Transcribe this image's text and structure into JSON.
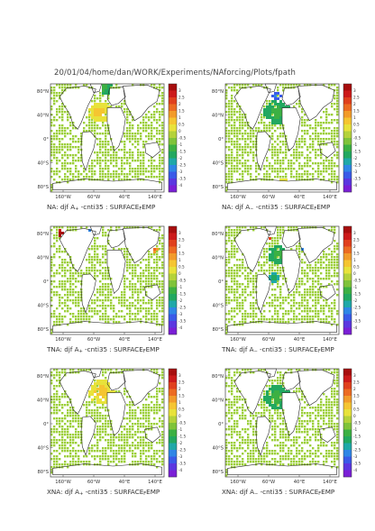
{
  "header": {
    "path": "20/01/04/home/dan/WORK/Experiments/NAforcing/Plots/fpath"
  },
  "colors": {
    "land_outline": "#2b2b2b",
    "ocean_green": "#9ccf3a",
    "colorbar": [
      "#7a1fd6",
      "#5b37e0",
      "#3a5ae8",
      "#2f86e6",
      "#1fa8a8",
      "#22a860",
      "#3cb043",
      "#7fc33a",
      "#b4d23a",
      "#e8e23a",
      "#f5c531",
      "#f29b2a",
      "#ec6b22",
      "#e0401d",
      "#cc1a1a",
      "#a70e0e"
    ]
  },
  "panels": [
    {
      "id": "na-plus",
      "caption_prefix": "NA:  djf  A",
      "caption_sub": "+",
      "caption_suffix": "  -cnti35  :  SURFACE",
      "caption_sub2": "F",
      "caption_end": "EMP",
      "lat_labels": [
        "80°N",
        "40°N",
        "0°",
        "40°S",
        "80°S"
      ],
      "lon_labels": [
        "160°W",
        "60°W",
        "40°E",
        "140°E"
      ],
      "colorbar_ticks": [
        "3",
        "2.5",
        "2",
        "1.5",
        "1",
        "0.5",
        "0",
        "-0.5",
        "-1",
        "-1.5",
        "-2",
        "-2.5",
        "-3",
        "-3.5",
        "-4"
      ]
    },
    {
      "id": "na-minus",
      "caption_prefix": "NA:  djf  A",
      "caption_sub": "−",
      "caption_suffix": "  -cnti35  :  SURFACE",
      "caption_sub2": "F",
      "caption_end": "EMP",
      "lat_labels": [
        "80°N",
        "40°N",
        "0°",
        "40°S",
        "80°S"
      ],
      "lon_labels": [
        "160°W",
        "60°W",
        "40°E",
        "140°E"
      ],
      "colorbar_ticks": [
        "3",
        "2.5",
        "2",
        "1.5",
        "1",
        "0.5",
        "0",
        "-0.5",
        "-1",
        "-1.5",
        "-2",
        "-2.5",
        "-3",
        "-3.5",
        "-4"
      ]
    },
    {
      "id": "tna-plus",
      "caption_prefix": "TNA:  djf  A",
      "caption_sub": "+",
      "caption_suffix": "  -cnti35  :  SURFACE",
      "caption_sub2": "F",
      "caption_end": "EMP",
      "lat_labels": [
        "80°N",
        "40°N",
        "0°",
        "40°S",
        "80°S"
      ],
      "lon_labels": [
        "160°W",
        "60°W",
        "40°E",
        "140°E"
      ],
      "colorbar_ticks": [
        "3",
        "2.5",
        "2",
        "1.5",
        "1",
        "0.5",
        "0",
        "-0.5",
        "-1",
        "-1.5",
        "-2",
        "-2.5",
        "-3",
        "-3.5",
        "-4"
      ]
    },
    {
      "id": "tna-minus",
      "caption_prefix": "TNA:  djf  A",
      "caption_sub": "−",
      "caption_suffix": "  -cnti35  :  SURFACE",
      "caption_sub2": "F",
      "caption_end": "EMP",
      "lat_labels": [
        "80°N",
        "40°N",
        "0°",
        "40°S",
        "80°S"
      ],
      "lon_labels": [
        "160°W",
        "60°W",
        "40°E",
        "140°E"
      ],
      "colorbar_ticks": [
        "3",
        "2.5",
        "2",
        "1.5",
        "1",
        "0.5",
        "0",
        "-0.5",
        "-1",
        "-1.5",
        "-2",
        "-2.5",
        "-3",
        "-3.5",
        "-4"
      ]
    },
    {
      "id": "xna-plus",
      "caption_prefix": "XNA:  djf  A",
      "caption_sub": "+",
      "caption_suffix": "  -cnti35  :  SURFACE",
      "caption_sub2": "F",
      "caption_end": "EMP",
      "lat_labels": [
        "80°N",
        "40°N",
        "0°",
        "40°S",
        "80°S"
      ],
      "lon_labels": [
        "160°W",
        "60°W",
        "40°E",
        "140°E"
      ],
      "colorbar_ticks": [
        "3",
        "2.5",
        "2",
        "1.5",
        "1",
        "0.5",
        "0",
        "-0.5",
        "-1",
        "-1.5",
        "-2",
        "-2.5",
        "-3",
        "-3.5",
        "-4"
      ]
    },
    {
      "id": "xna-minus",
      "caption_prefix": "XNA:  djf  A",
      "caption_sub": "−",
      "caption_suffix": "  -cnti35  :  SURFACE",
      "caption_sub2": "F",
      "caption_end": "EMP",
      "lat_labels": [
        "80°N",
        "40°N",
        "0°",
        "40°S",
        "80°S"
      ],
      "lon_labels": [
        "160°W",
        "60°W",
        "40°E",
        "140°E"
      ],
      "colorbar_ticks": [
        "3",
        "2.5",
        "2",
        "1.5",
        "1",
        "0.5",
        "0",
        "-0.5",
        "-1",
        "-1.5",
        "-2",
        "-2.5",
        "-3",
        "-3.5",
        "-4"
      ]
    }
  ],
  "chart_data": [
    {
      "type": "heatmap",
      "title": "NA: djf A+ -cnti35 : SURFACE F EMP",
      "x": [
        "160°W",
        "60°W",
        "40°E",
        "140°E"
      ],
      "y": [
        "80°N",
        "40°N",
        "0°",
        "40°S",
        "80°S"
      ],
      "colorbar": [
        3,
        2.5,
        2,
        1.5,
        1,
        0.5,
        0,
        -0.5,
        -1,
        -1.5,
        -2,
        -2.5,
        -3,
        -3.5,
        -4
      ],
      "legend": "right"
    },
    {
      "type": "heatmap",
      "title": "NA: djf A- -cnti35 : SURFACE F EMP",
      "x": [
        "160°W",
        "60°W",
        "40°E",
        "140°E"
      ],
      "y": [
        "80°N",
        "40°N",
        "0°",
        "40°S",
        "80°S"
      ],
      "colorbar": [
        3,
        2.5,
        2,
        1.5,
        1,
        0.5,
        0,
        -0.5,
        -1,
        -1.5,
        -2,
        -2.5,
        -3,
        -3.5,
        -4
      ],
      "legend": "right"
    },
    {
      "type": "heatmap",
      "title": "TNA: djf A+ -cnti35 : SURFACE F EMP",
      "x": [
        "160°W",
        "60°W",
        "40°E",
        "140°E"
      ],
      "y": [
        "80°N",
        "40°N",
        "0°",
        "40°S",
        "80°S"
      ],
      "colorbar": [
        3,
        2.5,
        2,
        1.5,
        1,
        0.5,
        0,
        -0.5,
        -1,
        -1.5,
        -2,
        -2.5,
        -3,
        -3.5,
        -4
      ],
      "legend": "right"
    },
    {
      "type": "heatmap",
      "title": "TNA: djf A- -cnti35 : SURFACE F EMP",
      "x": [
        "160°W",
        "60°W",
        "40°E",
        "140°E"
      ],
      "y": [
        "80°N",
        "40°N",
        "0°",
        "40°S",
        "80°S"
      ],
      "colorbar": [
        3,
        2.5,
        2,
        1.5,
        1,
        0.5,
        0,
        -0.5,
        -1,
        -1.5,
        -2,
        -2.5,
        -3,
        -3.5,
        -4
      ],
      "legend": "right"
    },
    {
      "type": "heatmap",
      "title": "XNA: djf A+ -cnti35 : SURFACE F EMP",
      "x": [
        "160°W",
        "60°W",
        "40°E",
        "140°E"
      ],
      "y": [
        "80°N",
        "40°N",
        "0°",
        "40°S",
        "80°S"
      ],
      "colorbar": [
        3,
        2.5,
        2,
        1.5,
        1,
        0.5,
        0,
        -0.5,
        -1,
        -1.5,
        -2,
        -2.5,
        -3,
        -3.5,
        -4
      ],
      "legend": "right"
    },
    {
      "type": "heatmap",
      "title": "XNA: djf A- -cnti35 : SURFACE F EMP",
      "x": [
        "160°W",
        "60°W",
        "40°E",
        "140°E"
      ],
      "y": [
        "80°N",
        "40°N",
        "0°",
        "40°S",
        "80°S"
      ],
      "colorbar": [
        3,
        2.5,
        2,
        1.5,
        1,
        0.5,
        0,
        -0.5,
        -1,
        -1.5,
        -2,
        -2.5,
        -3,
        -3.5,
        -4
      ],
      "legend": "right"
    }
  ]
}
